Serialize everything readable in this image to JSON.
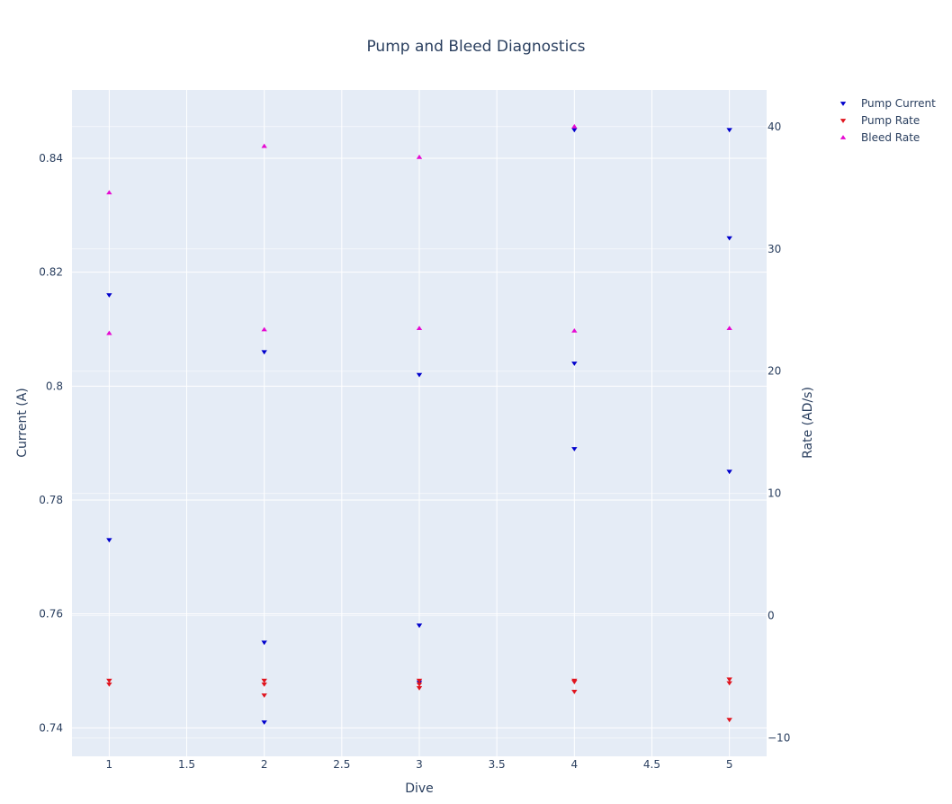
{
  "chart_data": {
    "type": "scatter",
    "title": "Pump and Bleed Diagnostics",
    "xlabel": "Dive",
    "ylabel": "Current (A)",
    "y2label": "Rate (AD/s)",
    "xlim": [
      0.76,
      5.24
    ],
    "ylim": [
      0.735,
      0.852
    ],
    "y2lim": [
      -11.5,
      43
    ],
    "x_ticks": [
      "1",
      "1.5",
      "2",
      "2.5",
      "3",
      "3.5",
      "4",
      "4.5",
      "5"
    ],
    "y_ticks": [
      "0.74",
      "0.76",
      "0.78",
      "0.8",
      "0.82",
      "0.84"
    ],
    "y2_ticks": [
      "−10",
      "0",
      "10",
      "20",
      "30",
      "40"
    ],
    "legend_position": "top-right",
    "series": [
      {
        "name": "Pump Current",
        "axis": "y",
        "marker": "triangle-down",
        "color": "#0000cc",
        "points": [
          [
            1,
            0.816
          ],
          [
            1,
            0.773
          ],
          [
            2,
            0.806
          ],
          [
            2,
            0.755
          ],
          [
            2,
            0.741
          ],
          [
            3,
            0.802
          ],
          [
            3,
            0.758
          ],
          [
            3,
            0.748
          ],
          [
            4,
            0.845
          ],
          [
            4,
            0.804
          ],
          [
            4,
            0.789
          ],
          [
            5,
            0.845
          ],
          [
            5,
            0.826
          ],
          [
            5,
            0.785
          ]
        ]
      },
      {
        "name": "Pump Rate",
        "axis": "y2",
        "marker": "triangle-down",
        "color": "#e0141e",
        "points": [
          [
            1,
            -5.3
          ],
          [
            1,
            -5.6
          ],
          [
            2,
            -5.3
          ],
          [
            2,
            -5.6
          ],
          [
            2,
            -6.5
          ],
          [
            3,
            -5.3
          ],
          [
            3,
            -5.6
          ],
          [
            3,
            -5.9
          ],
          [
            4,
            -5.3
          ],
          [
            4,
            -5.4
          ],
          [
            4,
            -6.2
          ],
          [
            5,
            -5.2
          ],
          [
            5,
            -5.5
          ],
          [
            5,
            -8.5
          ]
        ]
      },
      {
        "name": "Bleed Rate",
        "axis": "y2",
        "marker": "triangle-up",
        "color": "#e60ad2",
        "points": [
          [
            1,
            34.6
          ],
          [
            1,
            23.1
          ],
          [
            2,
            38.4
          ],
          [
            2,
            23.4
          ],
          [
            3,
            37.5
          ],
          [
            3,
            23.5
          ],
          [
            4,
            40.0
          ],
          [
            4,
            23.3
          ],
          [
            5,
            23.5
          ]
        ]
      }
    ]
  }
}
